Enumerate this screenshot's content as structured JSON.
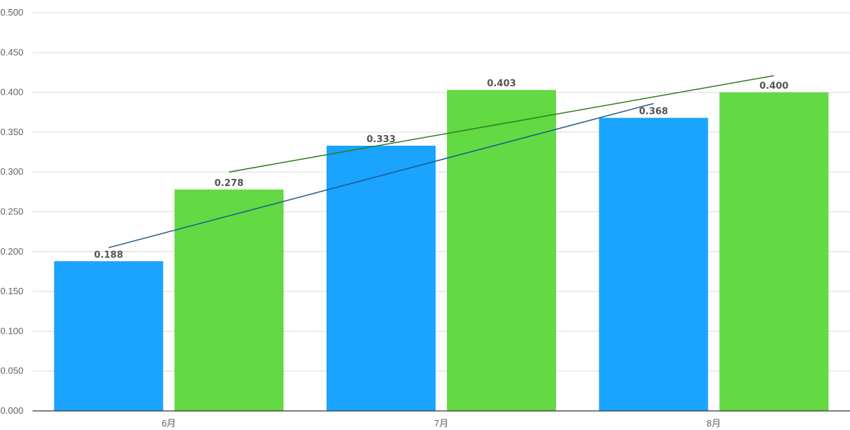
{
  "chart_data": {
    "type": "bar",
    "categories": [
      "6月",
      "7月",
      "8月"
    ],
    "series": [
      {
        "values": [
          0.188,
          0.333,
          0.368
        ],
        "color": "#1aa3ff"
      },
      {
        "values": [
          0.278,
          0.403,
          0.4
        ],
        "color": "#63d944"
      }
    ],
    "data_labels": [
      [
        "0.188",
        "0.333",
        "0.368"
      ],
      [
        "0.278",
        "0.403",
        "0.400"
      ]
    ],
    "trendlines": [
      {
        "series_index": 0,
        "color": "#1f5a8c",
        "start": 0.205,
        "end": 0.386
      },
      {
        "series_index": 1,
        "color": "#2e7d1e",
        "start": 0.3,
        "end": 0.421
      }
    ],
    "ylim": [
      0,
      0.5
    ],
    "yticks": [
      "0.000",
      "0.050",
      "0.100",
      "0.150",
      "0.200",
      "0.250",
      "0.300",
      "0.350",
      "0.400",
      "0.450",
      "0.500"
    ],
    "xlabel": "",
    "ylabel": "",
    "title": "",
    "grid": true,
    "legend": "none"
  }
}
